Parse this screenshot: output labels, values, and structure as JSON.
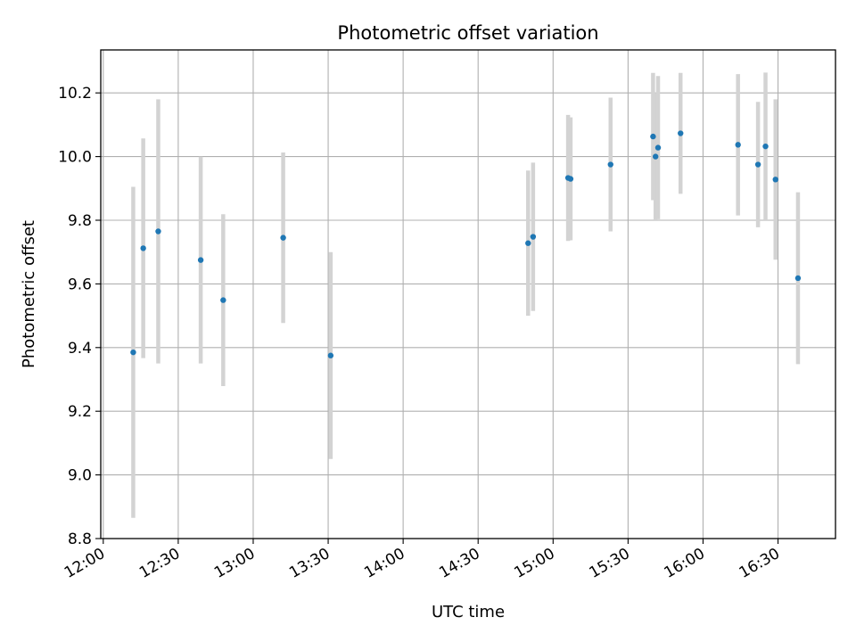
{
  "chart_data": {
    "type": "scatter",
    "title": "Photometric offset variation",
    "xlabel": "UTC time",
    "ylabel": "Photometric offset",
    "x_ticks": [
      "12:00",
      "12:30",
      "13:00",
      "13:30",
      "14:00",
      "14:30",
      "15:00",
      "15:30",
      "16:00",
      "16:30"
    ],
    "y_ticks": [
      "8.8",
      "9.0",
      "9.2",
      "9.4",
      "9.6",
      "9.8",
      "10.0",
      "10.2"
    ],
    "xlim": [
      "11:59",
      "16:53"
    ],
    "ylim": [
      8.8,
      10.335
    ],
    "grid": true,
    "colors": {
      "point": "#1f77b4",
      "errorbar": "#d3d3d3",
      "grid": "#b0b0b0"
    },
    "points": [
      {
        "x": "12:12",
        "y": 9.385,
        "err": 0.52
      },
      {
        "x": "12:16",
        "y": 9.712,
        "err": 0.345
      },
      {
        "x": "12:22",
        "y": 9.765,
        "err": 0.415
      },
      {
        "x": "12:39",
        "y": 9.675,
        "err": 0.325
      },
      {
        "x": "12:48",
        "y": 9.549,
        "err": 0.27
      },
      {
        "x": "13:12",
        "y": 9.745,
        "err": 0.268
      },
      {
        "x": "13:31",
        "y": 9.375,
        "err": 0.325
      },
      {
        "x": "14:50",
        "y": 9.728,
        "err": 0.228
      },
      {
        "x": "14:52",
        "y": 9.748,
        "err": 0.233
      },
      {
        "x": "15:06",
        "y": 9.933,
        "err": 0.198
      },
      {
        "x": "15:07",
        "y": 9.93,
        "err": 0.193
      },
      {
        "x": "15:23",
        "y": 9.975,
        "err": 0.21
      },
      {
        "x": "15:40",
        "y": 10.063,
        "err": 0.2
      },
      {
        "x": "15:41",
        "y": 10.0,
        "err": 0.2
      },
      {
        "x": "15:42",
        "y": 10.028,
        "err": 0.225
      },
      {
        "x": "15:51",
        "y": 10.073,
        "err": 0.19
      },
      {
        "x": "16:14",
        "y": 10.037,
        "err": 0.222
      },
      {
        "x": "16:22",
        "y": 9.975,
        "err": 0.197
      },
      {
        "x": "16:25",
        "y": 10.032,
        "err": 0.232
      },
      {
        "x": "16:29",
        "y": 9.928,
        "err": 0.252
      },
      {
        "x": "16:38",
        "y": 9.618,
        "err": 0.27
      }
    ]
  }
}
